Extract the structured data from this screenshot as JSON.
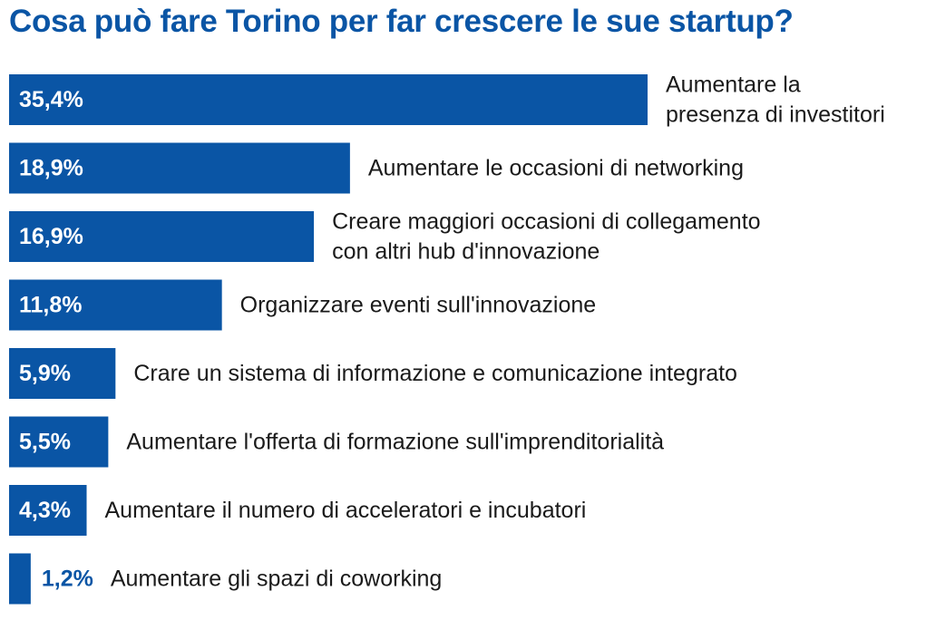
{
  "chart_data": {
    "type": "bar",
    "orientation": "horizontal",
    "title": "Cosa può fare Torino per far crescere le sue startup?",
    "bar_color": "#0a55a5",
    "value_label_color_inside": "#ffffff",
    "value_label_color_outside": "#0a55a5",
    "xlim": [
      0,
      35.4
    ],
    "grid": false,
    "categories": [
      [
        "Aumentare la",
        "presenza di investitori"
      ],
      [
        "Aumentare le occasioni di networking"
      ],
      [
        "Creare maggiori occasioni di collegamento",
        "con altri hub d'innovazione"
      ],
      [
        "Organizzare eventi sull'innovazione"
      ],
      [
        "Crare un sistema di informazione e comunicazione integrato"
      ],
      [
        "Aumentare l'offerta di formazione sull'imprenditorialità"
      ],
      [
        "Aumentare il numero di acceleratori e incubatori"
      ],
      [
        "Aumentare gli spazi di coworking"
      ]
    ],
    "values": [
      35.4,
      18.9,
      16.9,
      11.8,
      5.9,
      5.5,
      4.3,
      1.2
    ],
    "value_labels": [
      "35,4%",
      "18,9%",
      "16,9%",
      "11,8%",
      "5,9%",
      "5,5%",
      "4,3%",
      "1,2%"
    ]
  }
}
